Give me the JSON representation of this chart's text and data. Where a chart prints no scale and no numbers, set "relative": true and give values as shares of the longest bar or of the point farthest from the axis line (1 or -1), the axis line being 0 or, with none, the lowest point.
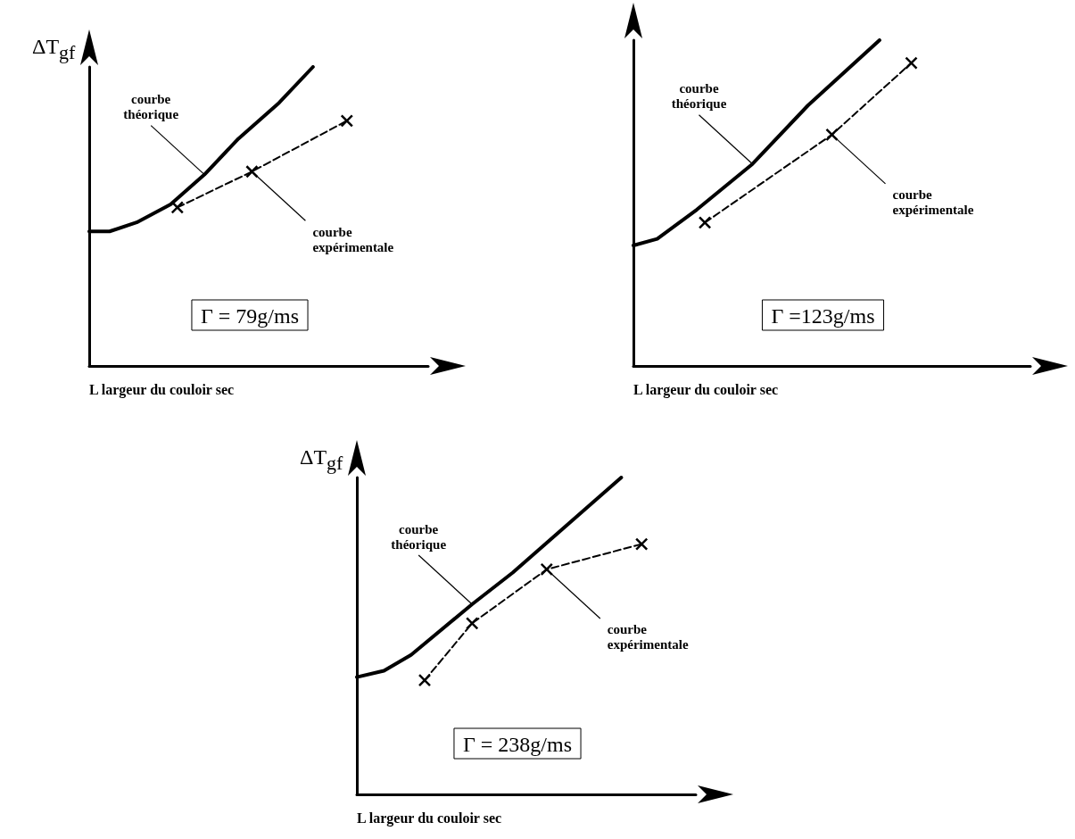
{
  "chart_data": [
    {
      "type": "line",
      "relative": true,
      "xlabel": "L largeur du couloir sec",
      "ylabel": "ΔT$_{gf}$",
      "grid": false,
      "categories": [
        null,
        null,
        null,
        null,
        null,
        null,
        null,
        null,
        null,
        null,
        null,
        null,
        null,
        null,
        null,
        null,
        null,
        null,
        null,
        null,
        null,
        null,
        null,
        null,
        null,
        null,
        null,
        null,
        null,
        null,
        null,
        null,
        null,
        null,
        null,
        null,
        null,
        null,
        null,
        null,
        null,
        null,
        null,
        null,
        null,
        null,
        null,
        null,
        null,
        null,
        null
      ],
      "annotations": [
        "courbe\nthéorique",
        "courbe\nexpérimentale",
        "Γ = 79g/ms"
      ],
      "series": [
        {
          "color": "#000000",
          "line_style": "solid",
          "marker": "none",
          "values": [
            0.45,
            null,
            null,
            0.45,
            null,
            null,
            null,
            0.48,
            null,
            null,
            null,
            null,
            0.54,
            null,
            null,
            null,
            null,
            0.64,
            null,
            null,
            null,
            null,
            0.76,
            null,
            null,
            null,
            null,
            null,
            0.88,
            null,
            null,
            null,
            null,
            1,
            null,
            null,
            null,
            null,
            null,
            null,
            null,
            null,
            null,
            null,
            null,
            null,
            null,
            null,
            null,
            null,
            null
          ]
        },
        {
          "color": "#000000",
          "line_style": "dashed",
          "marker": "cross",
          "values": [
            null,
            null,
            null,
            null,
            null,
            null,
            null,
            null,
            null,
            null,
            null,
            null,
            null,
            0.53,
            null,
            null,
            null,
            null,
            null,
            null,
            null,
            null,
            null,
            null,
            0.65,
            null,
            null,
            null,
            null,
            null,
            null,
            null,
            null,
            null,
            null,
            null,
            null,
            null,
            0.82,
            null,
            null,
            null,
            null,
            null,
            null,
            null,
            null,
            null,
            null,
            null,
            null
          ]
        }
      ]
    },
    {
      "type": "line",
      "relative": true,
      "xlabel": "L largeur du couloir sec",
      "grid": false,
      "categories": [
        null,
        null,
        null,
        null,
        null,
        null,
        null,
        null,
        null,
        null,
        null,
        null,
        null,
        null,
        null,
        null,
        null,
        null,
        null,
        null,
        null,
        null,
        null,
        null,
        null,
        null,
        null,
        null,
        null,
        null,
        null,
        null,
        null,
        null,
        null,
        null,
        null,
        null,
        null,
        null,
        null,
        null,
        null,
        null,
        null,
        null,
        null,
        null,
        null,
        null,
        null
      ],
      "annotations": [
        "courbe\nthéorique",
        "courbe\nexpérimentale",
        "Γ =123g/ms"
      ],
      "series": [
        {
          "color": "#000000",
          "line_style": "solid",
          "marker": "none",
          "values": [
            0.37,
            null,
            null,
            0.39,
            null,
            null,
            null,
            null,
            0.48,
            null,
            null,
            null,
            null,
            null,
            null,
            0.62,
            null,
            null,
            null,
            null,
            null,
            null,
            0.8,
            null,
            null,
            null,
            null,
            null,
            null,
            null,
            null,
            1,
            null,
            null,
            null,
            null,
            null,
            null,
            null,
            null,
            null,
            null,
            null,
            null,
            null,
            null,
            null,
            null,
            null,
            null,
            null
          ]
        },
        {
          "color": "#000000",
          "line_style": "dashed",
          "marker": "cross",
          "values": [
            null,
            null,
            null,
            null,
            null,
            null,
            null,
            null,
            null,
            0.44,
            null,
            null,
            null,
            null,
            null,
            null,
            null,
            null,
            null,
            null,
            null,
            null,
            null,
            null,
            null,
            0.71,
            null,
            null,
            null,
            null,
            null,
            null,
            null,
            null,
            null,
            0.93,
            null,
            null,
            null,
            null,
            null,
            null,
            null,
            null,
            null,
            null,
            null,
            null,
            null,
            null,
            null
          ]
        }
      ]
    },
    {
      "type": "line",
      "relative": true,
      "xlabel": "L largeur du couloir sec",
      "ylabel": "ΔT$_{gf}$",
      "grid": false,
      "categories": [
        null,
        null,
        null,
        null,
        null,
        null,
        null,
        null,
        null,
        null,
        null,
        null,
        null,
        null,
        null,
        null,
        null,
        null,
        null,
        null,
        null,
        null,
        null,
        null,
        null,
        null,
        null,
        null,
        null,
        null,
        null,
        null,
        null,
        null,
        null,
        null,
        null,
        null,
        null,
        null,
        null,
        null,
        null,
        null,
        null,
        null,
        null,
        null,
        null,
        null,
        null
      ],
      "annotations": [
        "courbe\nthéorique",
        "courbe\nexpérimentale",
        "Γ = 238g/ms"
      ],
      "series": [
        {
          "color": "#000000",
          "line_style": "solid",
          "marker": "none",
          "values": [
            0.37,
            null,
            null,
            null,
            0.39,
            null,
            null,
            null,
            0.44,
            null,
            null,
            null,
            null,
            null,
            null,
            null,
            null,
            0.6,
            null,
            null,
            null,
            null,
            null,
            0.7,
            null,
            null,
            null,
            null,
            null,
            null,
            null,
            null,
            null,
            null,
            null,
            null,
            null,
            null,
            null,
            1,
            null,
            null,
            null,
            null,
            null,
            null,
            null,
            null,
            null,
            null,
            null
          ]
        },
        {
          "color": "#000000",
          "line_style": "dashed",
          "marker": "cross",
          "values": [
            null,
            null,
            null,
            null,
            null,
            null,
            null,
            null,
            null,
            null,
            0.36,
            null,
            null,
            null,
            null,
            null,
            null,
            0.54,
            null,
            null,
            null,
            null,
            null,
            null,
            null,
            null,
            null,
            null,
            0.71,
            null,
            null,
            null,
            null,
            null,
            null,
            null,
            null,
            null,
            null,
            null,
            null,
            null,
            0.79,
            null,
            null,
            null,
            null,
            null,
            null,
            null,
            null
          ]
        }
      ]
    }
  ]
}
